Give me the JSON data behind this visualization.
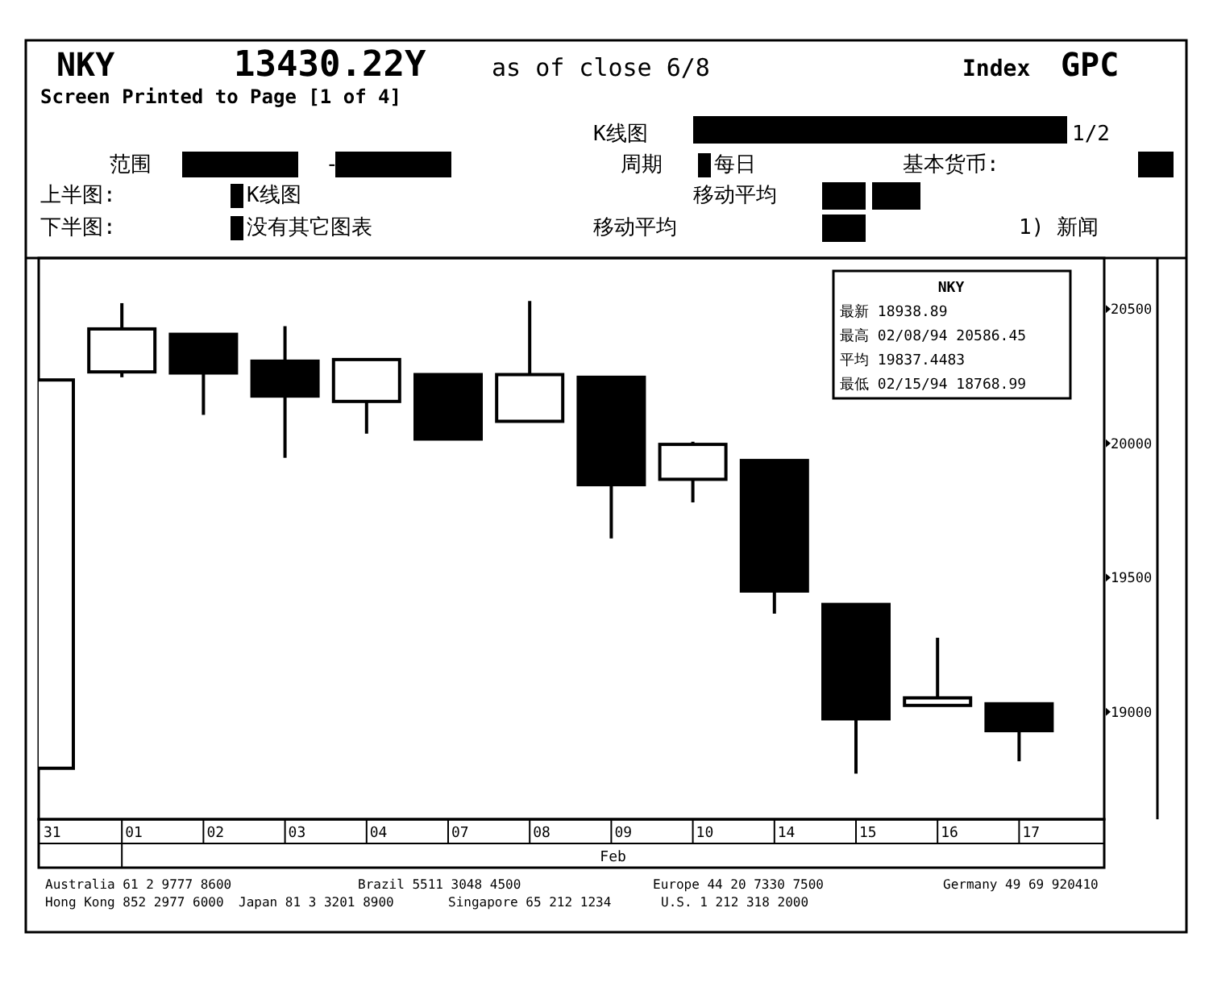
{
  "chart_data": {
    "type": "candlestick",
    "title": "NKY",
    "subtitle": "Screen Printed to Page [1 of 4]",
    "xlabel": "Feb",
    "categories": [
      "31",
      "01",
      "02",
      "03",
      "04",
      "07",
      "08",
      "09",
      "10",
      "14",
      "15",
      "16",
      "17"
    ],
    "ohlc": [
      [
        18790,
        20236,
        18790,
        20236
      ],
      [
        20266,
        20522,
        20246,
        20426
      ],
      [
        20406,
        20406,
        20106,
        20262
      ],
      [
        20306,
        20436,
        19946,
        20176
      ],
      [
        20156,
        20312,
        20036,
        20312
      ],
      [
        20256,
        20256,
        20016,
        20016
      ],
      [
        20082,
        20530,
        20082,
        20256
      ],
      [
        20246,
        20246,
        19646,
        19846
      ],
      [
        19866,
        20006,
        19780,
        19996
      ],
      [
        19936,
        19936,
        19366,
        19450
      ],
      [
        19400,
        19400,
        18770,
        18974
      ],
      [
        19024,
        19276,
        19024,
        19052
      ],
      [
        19030,
        19030,
        18816,
        18930
      ]
    ],
    "ylim": [
      18600,
      20690
    ],
    "yticks": [
      19000,
      19500,
      20000,
      20500
    ],
    "annotations": [
      "13430.22Y",
      "as of close 6/8",
      "Index",
      "GPC",
      "K线图",
      "1/2",
      "范围",
      "-",
      "周期",
      "每日",
      "基本货币:",
      "上半图:",
      "K线图",
      "移动平均",
      "下半图:",
      "没有其它图表",
      "移动平均",
      "1) 新闻",
      "NKY",
      "最新 18938.89",
      "最高 02/08/94 20586.45",
      "平均 19837.4483",
      "最低 02/15/94 18768.99",
      "Australia 61 2 9777 8600",
      "Brazil 5511 3048 4500",
      "Europe 44 20 7330 7500",
      "Germany 49 69 920410",
      "Hong Kong 852 2977 6000",
      "Japan 81 3 3201 8900",
      "Singapore 65 212 1234",
      "U.S. 1 212 318 2000"
    ]
  }
}
